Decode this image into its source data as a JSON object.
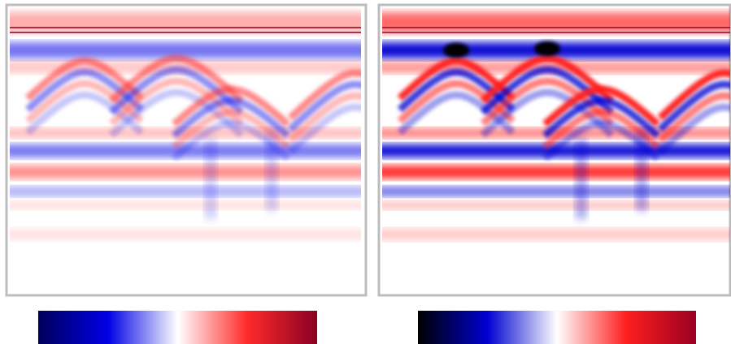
{
  "panels": [
    {
      "colormap": [
        "#00005a",
        "#0000e6",
        "#ffffff",
        "#ff2a2a",
        "#8a0024"
      ]
    },
    {
      "colormap": [
        "#000000",
        "#0000d2",
        "#ffffff",
        "#ff1e1e",
        "#9a0022"
      ]
    }
  ]
}
